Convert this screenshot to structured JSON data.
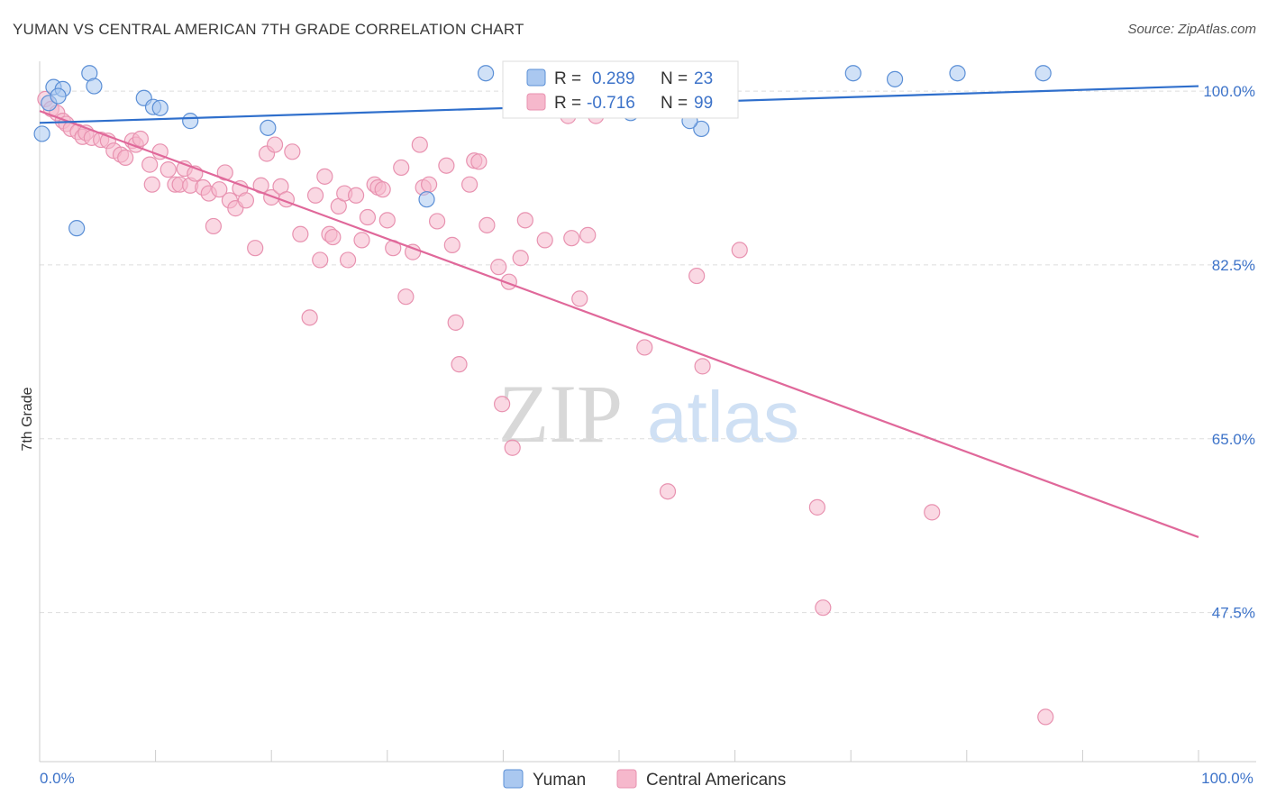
{
  "header": {
    "title": "YUMAN VS CENTRAL AMERICAN 7TH GRADE CORRELATION CHART",
    "source": "Source: ZipAtlas.com"
  },
  "watermark": {
    "zip": "ZIP",
    "atlas": "atlas"
  },
  "colors": {
    "yuman_fill": "#aac8f0",
    "yuman_stroke": "#5b8fd6",
    "yuman_line": "#2f6fcc",
    "central_fill": "#f6b8cc",
    "central_stroke": "#e892b0",
    "central_line": "#e0689a",
    "tick_text": "#3d73c9",
    "grid": "#dddddd"
  },
  "chart_data": {
    "type": "scatter",
    "title": "YUMAN VS CENTRAL AMERICAN 7TH GRADE CORRELATION CHART",
    "xlabel": "",
    "ylabel": "7th Grade",
    "xlim": [
      0,
      100
    ],
    "ylim": [
      32.5,
      103
    ],
    "x_tick_labels": [
      {
        "value": 0,
        "label": "0.0%"
      },
      {
        "value": 100,
        "label": "100.0%"
      }
    ],
    "y_tick_labels": [
      {
        "value": 100,
        "label": "100.0%"
      },
      {
        "value": 82.5,
        "label": "82.5%"
      },
      {
        "value": 65,
        "label": "65.0%"
      },
      {
        "value": 47.5,
        "label": "47.5%"
      }
    ],
    "legend": {
      "position": "top-center",
      "entries": [
        {
          "r_label": "R = ",
          "r_value": "0.289",
          "n_label": "N = ",
          "n_value": "23"
        },
        {
          "r_label": "R = ",
          "r_value": "-0.716",
          "n_label": "N = ",
          "n_value": "99"
        }
      ]
    },
    "series": [
      {
        "name": "Yuman",
        "trend": [
          [
            0,
            96.8
          ],
          [
            100,
            100.5
          ]
        ],
        "points": [
          [
            0.2,
            95.7
          ],
          [
            1.2,
            100.4
          ],
          [
            2.0,
            100.2
          ],
          [
            0.8,
            98.8
          ],
          [
            1.6,
            99.5
          ],
          [
            4.3,
            101.8
          ],
          [
            4.7,
            100.5
          ],
          [
            9.0,
            99.3
          ],
          [
            9.8,
            98.4
          ],
          [
            10.4,
            98.3
          ],
          [
            13.0,
            97.0
          ],
          [
            19.7,
            96.3
          ],
          [
            33.4,
            89.1
          ],
          [
            38.5,
            101.8
          ],
          [
            51.0,
            97.8
          ],
          [
            51.8,
            99.5
          ],
          [
            57.1,
            96.2
          ],
          [
            56.1,
            97.0
          ],
          [
            70.2,
            101.8
          ],
          [
            73.8,
            101.2
          ],
          [
            79.2,
            101.8
          ],
          [
            86.6,
            101.8
          ],
          [
            3.2,
            86.2
          ]
        ]
      },
      {
        "name": "Central Americans",
        "trend": [
          [
            0,
            98.0
          ],
          [
            100,
            55.1
          ]
        ],
        "points": [
          [
            0.5,
            99.2
          ],
          [
            1.0,
            98.2
          ],
          [
            1.5,
            97.8
          ],
          [
            2.0,
            97.0
          ],
          [
            2.3,
            96.7
          ],
          [
            2.7,
            96.2
          ],
          [
            3.3,
            95.9
          ],
          [
            3.7,
            95.4
          ],
          [
            4.0,
            95.8
          ],
          [
            4.5,
            95.3
          ],
          [
            5.3,
            95.1
          ],
          [
            5.9,
            95.0
          ],
          [
            6.4,
            94.0
          ],
          [
            7.0,
            93.6
          ],
          [
            7.4,
            93.3
          ],
          [
            8.0,
            95.0
          ],
          [
            8.3,
            94.6
          ],
          [
            8.7,
            95.2
          ],
          [
            9.5,
            92.6
          ],
          [
            9.7,
            90.6
          ],
          [
            10.4,
            93.9
          ],
          [
            11.1,
            92.1
          ],
          [
            11.7,
            90.6
          ],
          [
            12.1,
            90.6
          ],
          [
            12.5,
            92.2
          ],
          [
            13.0,
            90.5
          ],
          [
            13.4,
            91.7
          ],
          [
            14.1,
            90.3
          ],
          [
            14.6,
            89.7
          ],
          [
            15.0,
            86.4
          ],
          [
            15.5,
            90.1
          ],
          [
            16.0,
            91.8
          ],
          [
            16.4,
            89.0
          ],
          [
            16.9,
            88.2
          ],
          [
            17.3,
            90.2
          ],
          [
            17.8,
            89.0
          ],
          [
            18.6,
            84.2
          ],
          [
            19.1,
            90.5
          ],
          [
            19.6,
            93.7
          ],
          [
            20.0,
            89.3
          ],
          [
            20.3,
            94.6
          ],
          [
            20.8,
            90.4
          ],
          [
            21.3,
            89.1
          ],
          [
            21.8,
            93.9
          ],
          [
            22.5,
            85.6
          ],
          [
            23.3,
            77.2
          ],
          [
            23.8,
            89.5
          ],
          [
            24.2,
            83.0
          ],
          [
            24.6,
            91.4
          ],
          [
            25.0,
            85.6
          ],
          [
            25.3,
            85.3
          ],
          [
            25.8,
            88.4
          ],
          [
            26.3,
            89.7
          ],
          [
            26.6,
            83.0
          ],
          [
            27.3,
            89.5
          ],
          [
            27.8,
            85.0
          ],
          [
            28.3,
            87.3
          ],
          [
            28.9,
            90.6
          ],
          [
            29.2,
            90.3
          ],
          [
            29.6,
            90.1
          ],
          [
            30.0,
            87.0
          ],
          [
            30.5,
            84.2
          ],
          [
            31.2,
            92.3
          ],
          [
            31.6,
            79.3
          ],
          [
            32.2,
            83.8
          ],
          [
            32.8,
            94.6
          ],
          [
            33.1,
            90.3
          ],
          [
            33.6,
            90.6
          ],
          [
            34.3,
            86.9
          ],
          [
            35.1,
            92.5
          ],
          [
            35.6,
            84.5
          ],
          [
            35.9,
            76.7
          ],
          [
            36.2,
            72.5
          ],
          [
            37.1,
            90.6
          ],
          [
            37.5,
            93.0
          ],
          [
            37.9,
            92.9
          ],
          [
            38.6,
            86.5
          ],
          [
            39.6,
            82.3
          ],
          [
            39.9,
            68.5
          ],
          [
            40.5,
            80.8
          ],
          [
            40.8,
            64.1
          ],
          [
            41.5,
            83.2
          ],
          [
            41.9,
            87.0
          ],
          [
            43.6,
            85.0
          ],
          [
            45.6,
            97.5
          ],
          [
            45.9,
            85.2
          ],
          [
            46.6,
            79.1
          ],
          [
            47.3,
            85.5
          ],
          [
            48.0,
            97.5
          ],
          [
            49.2,
            101.2
          ],
          [
            52.2,
            74.2
          ],
          [
            54.2,
            59.7
          ],
          [
            56.7,
            81.4
          ],
          [
            57.2,
            72.3
          ],
          [
            60.4,
            84.0
          ],
          [
            67.1,
            58.1
          ],
          [
            67.6,
            48.0
          ],
          [
            77.0,
            57.6
          ],
          [
            86.8,
            37.0
          ]
        ]
      }
    ]
  },
  "bottom_legend": {
    "yuman_label": "Yuman",
    "central_label": "Central Americans"
  }
}
